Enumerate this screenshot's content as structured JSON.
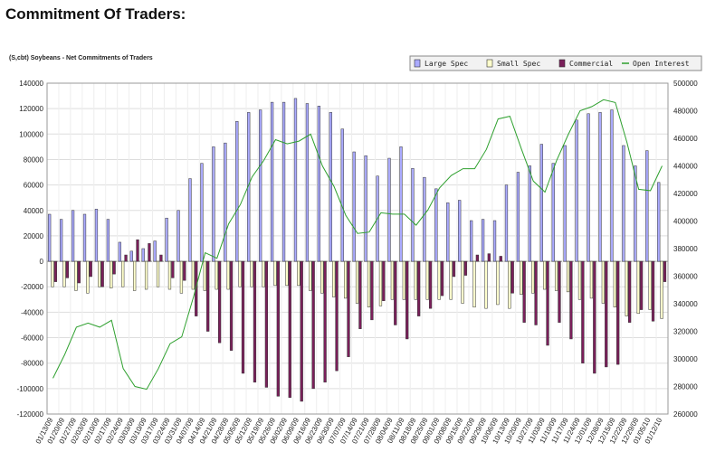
{
  "page": {
    "heading": "Commitment Of Traders:"
  },
  "chart_data": {
    "type": "bar",
    "title": "(S,cbt) Soybeans - Net Commitments of Traders",
    "xlabel": "",
    "ylabel": "",
    "ylim": [
      -120000,
      140000
    ],
    "y2lim": [
      260000,
      500000
    ],
    "yticks": [
      "140000",
      "120000",
      "100000",
      "80000",
      "60000",
      "40000",
      "20000",
      "0",
      "-20000",
      "-40000",
      "-60000",
      "-80000",
      "-100000",
      "-120000"
    ],
    "y2ticks": [
      "500000",
      "480000",
      "460000",
      "440000",
      "420000",
      "400000",
      "380000",
      "360000",
      "340000",
      "320000",
      "300000",
      "280000",
      "260000"
    ],
    "categories": [
      "01/13/09",
      "01/20/09",
      "01/27/09",
      "02/03/09",
      "02/10/09",
      "02/17/09",
      "02/24/09",
      "03/03/09",
      "03/10/09",
      "03/17/09",
      "03/24/09",
      "03/31/09",
      "04/07/09",
      "04/14/09",
      "04/21/09",
      "04/28/09",
      "05/05/09",
      "05/12/09",
      "05/19/09",
      "05/26/09",
      "06/02/09",
      "06/09/09",
      "06/16/09",
      "06/23/09",
      "06/30/09",
      "07/07/09",
      "07/14/09",
      "07/21/09",
      "07/28/09",
      "08/04/09",
      "08/11/09",
      "08/18/09",
      "08/25/09",
      "09/01/09",
      "09/08/09",
      "09/15/09",
      "09/22/09",
      "09/29/09",
      "10/06/09",
      "10/13/09",
      "10/20/09",
      "10/27/09",
      "11/03/09",
      "11/10/09",
      "11/17/09",
      "11/24/09",
      "12/01/09",
      "12/08/09",
      "12/15/09",
      "12/22/09",
      "12/29/09",
      "01/05/10",
      "01/12/10"
    ],
    "xtick_labels": [
      "01/13/09",
      "01/20/09",
      "01/27/09",
      "02/03/09",
      "02/10/09",
      "02/17/09",
      "02/24/09",
      "03/03/09",
      "03/10/09",
      "03/17/09",
      "03/24/09",
      "03/31/09",
      "04/07/09",
      "04/14/09",
      "04/21/09",
      "04/28/09",
      "05/05/09",
      "05/12/09",
      "05/19/09",
      "05/26/09",
      "06/02/09",
      "06/09/09",
      "06/16/09",
      "06/23/09",
      "06/30/09",
      "07/07/09",
      "07/14/09",
      "07/21/09",
      "07/28/09",
      "08/04/09",
      "08/11/09",
      "08/18/09",
      "08/25/09",
      "09/01/09",
      "09/08/09",
      "09/15/09",
      "09/22/09",
      "09/29/09",
      "10/06/09",
      "10/13/09",
      "10/20/09",
      "10/27/09",
      "11/03/09",
      "11/10/09",
      "11/17/09",
      "11/24/09",
      "12/01/09",
      "12/08/09",
      "12/15/09",
      "12/22/09",
      "12/29/09",
      "01/05/10",
      "01/12/10"
    ],
    "series": [
      {
        "name": "Large Spec",
        "color": "#aaaaff",
        "axis": "left",
        "values": [
          37000,
          33000,
          40000,
          37000,
          41000,
          33000,
          15000,
          8000,
          10000,
          16000,
          34000,
          40000,
          65000,
          77000,
          90000,
          93000,
          110000,
          117000,
          119000,
          125000,
          125000,
          128000,
          124000,
          122000,
          117000,
          104000,
          86000,
          83000,
          67000,
          81000,
          90000,
          73000,
          66000,
          57000,
          46000,
          48000,
          32000,
          33000,
          32000,
          60000,
          70000,
          75000,
          92000,
          77000,
          91000,
          111000,
          116000,
          117000,
          119000,
          91000,
          75000,
          87000,
          62000
        ]
      },
      {
        "name": "Small Spec",
        "color": "#ffffcc",
        "axis": "left",
        "values": [
          -20000,
          -20000,
          -23000,
          -25000,
          -20000,
          -21000,
          -20000,
          -23000,
          -22000,
          -20000,
          -22000,
          -25000,
          -22000,
          -23000,
          -22000,
          -22000,
          -20000,
          -20000,
          -20000,
          -19000,
          -19000,
          -19000,
          -23000,
          -25000,
          -28000,
          -29000,
          -33000,
          -36000,
          -35000,
          -30000,
          -30000,
          -30000,
          -30000,
          -30000,
          -30000,
          -33000,
          -36000,
          -37000,
          -34000,
          -37000,
          -26000,
          -25000,
          -22000,
          -23000,
          -24000,
          -30000,
          -29000,
          -33000,
          -36000,
          -43000,
          -41000,
          -38000,
          -45000
        ]
      },
      {
        "name": "Commercial",
        "color": "#7a1f5a",
        "axis": "left",
        "values": [
          -16000,
          -13000,
          -17000,
          -12000,
          -20000,
          -10000,
          5000,
          17000,
          14000,
          5000,
          -13000,
          -15000,
          -43000,
          -55000,
          -64000,
          -70000,
          -88000,
          -95000,
          -99000,
          -106000,
          -107000,
          -110000,
          -100000,
          -95000,
          -86000,
          -75000,
          -53000,
          -46000,
          -31000,
          -50000,
          -61000,
          -43000,
          -37000,
          -27000,
          -12000,
          -11000,
          5000,
          6000,
          4000,
          -25000,
          -48000,
          -50000,
          -66000,
          -48000,
          -61000,
          -80000,
          -88000,
          -83000,
          -81000,
          -48000,
          -38000,
          -47000,
          -16000
        ]
      },
      {
        "name": "Open Interest",
        "color": "#2ea02e",
        "axis": "right",
        "type": "line",
        "values": [
          286000,
          303000,
          323000,
          326000,
          323000,
          328000,
          293000,
          280000,
          278000,
          293000,
          311000,
          316000,
          345000,
          377000,
          373000,
          398000,
          412000,
          432000,
          444000,
          459000,
          456000,
          458000,
          463000,
          440000,
          425000,
          404000,
          391000,
          392000,
          406000,
          405000,
          405000,
          397000,
          408000,
          424000,
          433000,
          438000,
          438000,
          452000,
          474000,
          476000,
          452000,
          429000,
          421000,
          444000,
          463000,
          480000,
          483000,
          488000,
          486000,
          457000,
          423000,
          422000,
          440000
        ]
      }
    ],
    "legend": [
      "Large Spec",
      "Small Spec",
      "Commercial",
      "Open Interest"
    ],
    "legend_position": "top-right",
    "grid": true
  }
}
